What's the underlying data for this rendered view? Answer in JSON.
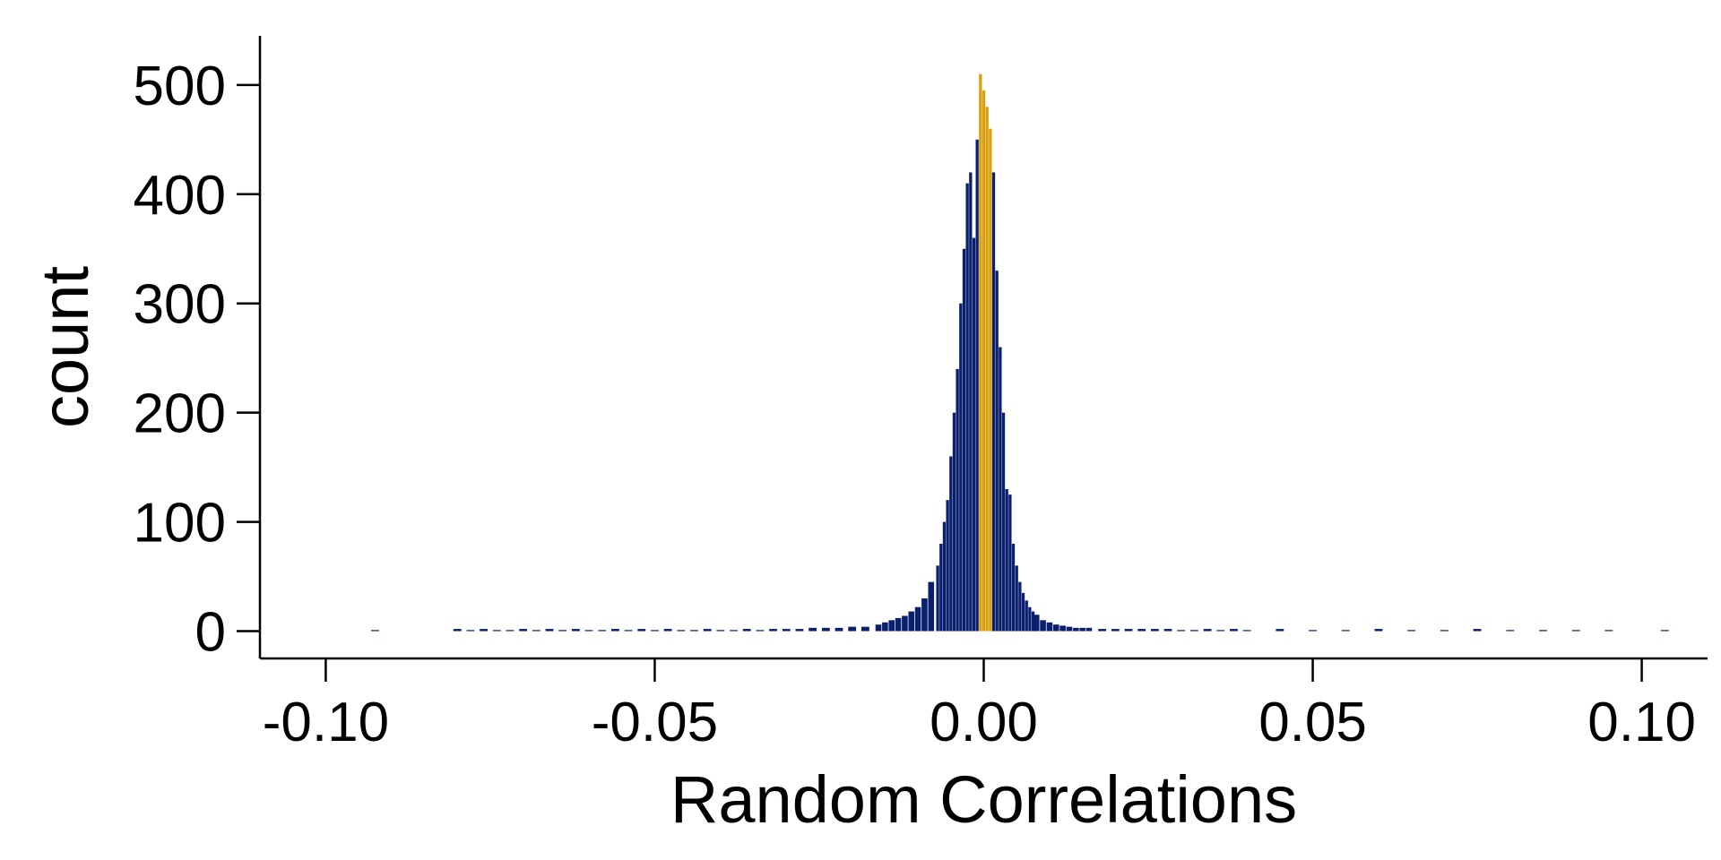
{
  "chart_data": {
    "type": "bar",
    "title": "",
    "xlabel": "Random Correlations",
    "ylabel": "count",
    "xlim": [
      -0.11,
      0.11
    ],
    "ylim": [
      -25,
      545
    ],
    "xticks": [
      -0.1,
      -0.05,
      0.0,
      0.05,
      0.1
    ],
    "xtick_labels": [
      "-0.10",
      "-0.05",
      "0.00",
      "0.05",
      "0.10"
    ],
    "yticks": [
      0,
      100,
      200,
      300,
      400,
      500
    ],
    "ytick_labels": [
      "0",
      "100",
      "200",
      "300",
      "400",
      "500"
    ],
    "grid": false,
    "colors": {
      "main": "#0a1f6e",
      "highlight": "#d9a00f",
      "axis": "#000000"
    },
    "highlight_range": [
      -0.0008,
      0.0014
    ],
    "series": [
      {
        "x": [
          -0.0925,
          -0.08,
          -0.078,
          -0.076,
          -0.074,
          -0.072,
          -0.07,
          -0.068,
          -0.066,
          -0.064,
          -0.062,
          -0.06,
          -0.058,
          -0.056,
          -0.054,
          -0.052,
          -0.05,
          -0.048,
          -0.046,
          -0.044,
          -0.042,
          -0.04,
          -0.038,
          -0.036,
          -0.034,
          -0.032,
          -0.03,
          -0.028,
          -0.026,
          -0.024,
          -0.022,
          -0.02,
          -0.018,
          -0.016,
          -0.015,
          -0.014,
          -0.013,
          -0.012,
          -0.011,
          -0.01,
          -0.009,
          -0.008,
          -0.007,
          -0.0065,
          -0.006,
          -0.0055,
          -0.005,
          -0.0045,
          -0.004,
          -0.0035,
          -0.003,
          -0.0025,
          -0.002,
          -0.0015,
          -0.001,
          -0.0005,
          0.0,
          0.0005,
          0.001,
          0.0015,
          0.002,
          0.0025,
          0.003,
          0.0035,
          0.004,
          0.0045,
          0.005,
          0.0055,
          0.006,
          0.0065,
          0.007,
          0.0075,
          0.008,
          0.009,
          0.01,
          0.011,
          0.012,
          0.013,
          0.014,
          0.015,
          0.016,
          0.018,
          0.02,
          0.022,
          0.024,
          0.026,
          0.028,
          0.03,
          0.032,
          0.034,
          0.036,
          0.038,
          0.04,
          0.045,
          0.05,
          0.055,
          0.06,
          0.065,
          0.07,
          0.075,
          0.08,
          0.085,
          0.09,
          0.095,
          0.1035
        ],
        "y": [
          1,
          2,
          1,
          2,
          1,
          1,
          2,
          1,
          2,
          1,
          2,
          1,
          1,
          2,
          1,
          2,
          1,
          2,
          1,
          1,
          2,
          1,
          1,
          2,
          1,
          2,
          2,
          2,
          3,
          3,
          3,
          4,
          4,
          6,
          8,
          10,
          12,
          14,
          18,
          22,
          30,
          45,
          60,
          80,
          100,
          120,
          160,
          200,
          240,
          300,
          350,
          410,
          420,
          360,
          450,
          510,
          495,
          480,
          460,
          420,
          330,
          260,
          200,
          130,
          125,
          80,
          60,
          45,
          35,
          28,
          22,
          18,
          15,
          10,
          8,
          6,
          5,
          4,
          3,
          3,
          3,
          2,
          2,
          2,
          2,
          2,
          2,
          1,
          1,
          2,
          1,
          2,
          1,
          2,
          1,
          1,
          2,
          1,
          1,
          2,
          1,
          1,
          1,
          1,
          1
        ]
      }
    ]
  }
}
